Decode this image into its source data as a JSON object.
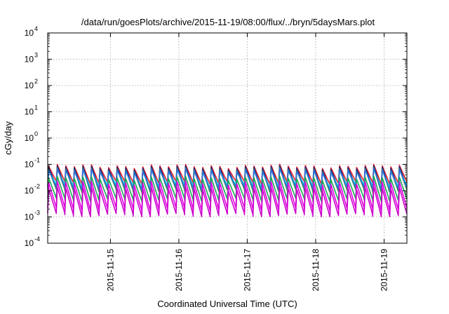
{
  "chart_data": {
    "type": "line",
    "title": "/data/run/goesPlots/archive/2015-11-19/08:00/flux/../bryn/5daysMars.plot",
    "xlabel": "Coordinated Universal Time (UTC)",
    "ylabel": "cGy/day",
    "yscale": "log",
    "ylim": [
      0.0001,
      10000
    ],
    "xlim": [
      "2015-11-14 02:00",
      "2015-11-19 08:00"
    ],
    "x_ticks": [
      "2015-11-15",
      "2015-11-16",
      "2015-11-17",
      "2015-11-18",
      "2015-11-19"
    ],
    "y_ticks": [
      {
        "base": "10",
        "exp": "-4"
      },
      {
        "base": "10",
        "exp": "-3"
      },
      {
        "base": "10",
        "exp": "-2"
      },
      {
        "base": "10",
        "exp": "-1"
      },
      {
        "base": "10",
        "exp": "0"
      },
      {
        "base": "10",
        "exp": "1"
      },
      {
        "base": "10",
        "exp": "2"
      },
      {
        "base": "10",
        "exp": "3"
      },
      {
        "base": "10",
        "exp": "4"
      }
    ],
    "grid": true,
    "sawtooth_period_hours": 3,
    "series": [
      {
        "color": "#e8262b",
        "peak": 0.085,
        "trough": 0.02
      },
      {
        "color": "#1a1a8a",
        "peak": 0.075,
        "trough": 0.013
      },
      {
        "color": "#2e7d32",
        "peak": 0.065,
        "trough": 0.01
      },
      {
        "color": "#00e5e5",
        "peak": 0.055,
        "trough": 0.015
      },
      {
        "color": "#2f6fd8",
        "peak": 0.06,
        "trough": 0.012
      },
      {
        "color": "#1aaa55",
        "peak": 0.03,
        "trough": 0.0045
      },
      {
        "color": "#e100e1",
        "peak": 0.02,
        "trough": 0.002
      },
      {
        "color": "#cc00cc",
        "peak": 0.012,
        "trough": 0.0012
      }
    ]
  }
}
